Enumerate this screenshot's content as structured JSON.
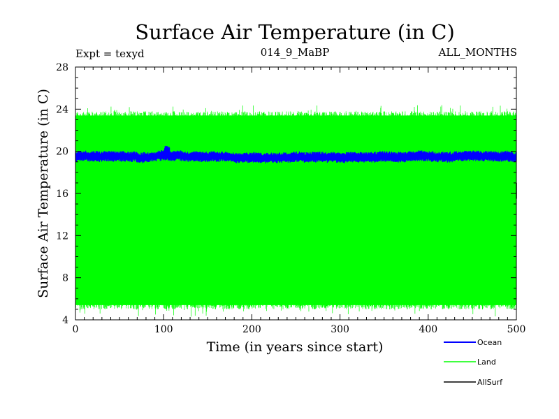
{
  "chart_data": {
    "type": "line",
    "title": "Surface Air Temperature (in C)",
    "subtitle_left": "Expt = texyd",
    "subtitle_center": "014_9_MaBP",
    "subtitle_right": "ALL_MONTHS",
    "xlabel": "Time (in years since start)",
    "ylabel": "Surface Air Temperature (in C)",
    "xlim": [
      0,
      500
    ],
    "ylim": [
      4,
      28
    ],
    "xticks": [
      "0",
      "100",
      "200",
      "300",
      "400",
      "500"
    ],
    "yticks": [
      "4",
      "8",
      "12",
      "16",
      "20",
      "24",
      "28"
    ],
    "grid": false,
    "legend_position": "bottom-right",
    "series": [
      {
        "name": "Ocean",
        "color": "#0000ff",
        "band_min": 19.0,
        "band_max": 20.1,
        "mean": 19.5
      },
      {
        "name": "Land",
        "color": "#00ff00",
        "band_min": 5.0,
        "band_max": 23.8,
        "mean": 14.5
      },
      {
        "name": "AllSurf",
        "color": "#000000"
      }
    ]
  }
}
